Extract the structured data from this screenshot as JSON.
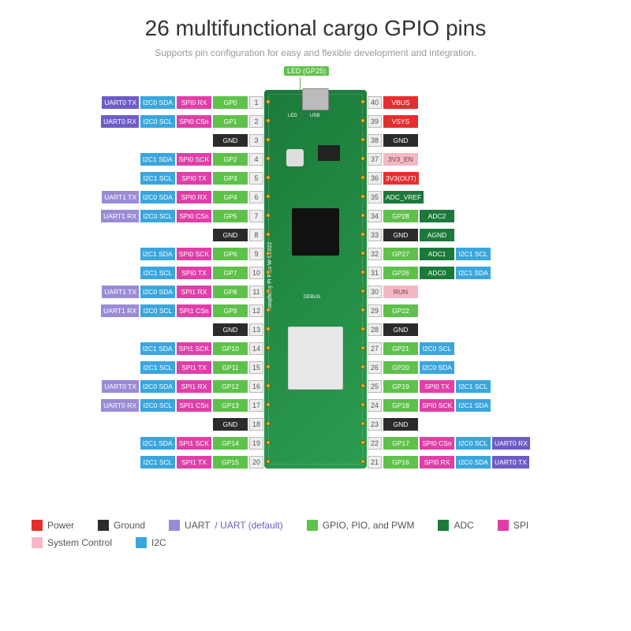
{
  "title": "26 multifunctional cargo GPIO pins",
  "subtitle": "Supports pin configuration for easy and flexible development and integration.",
  "led_label": "LED (GP25)",
  "board_label": "Raspberry Pi Pico W ©2022",
  "debug_label": "DEBUG",
  "usb_label": "USB",
  "led_txt": "LED",
  "colors": {
    "power": "#e52e2e",
    "ground": "#2b2b2b",
    "uart": "#9b8bd6",
    "uart_default": "#6f5bc7",
    "gpio": "#5ec14a",
    "adc": "#1b7a3a",
    "spi": "#e03fa8",
    "syscontrol": "#f4b8c4",
    "i2c": "#3aa6dd",
    "pinnum_bg": "#eeeeee"
  },
  "legend": [
    {
      "color": "power",
      "label": "Power"
    },
    {
      "color": "ground",
      "label": "Ground"
    },
    {
      "color": "uart",
      "label": "UART",
      "extra": "/ UART (default)",
      "extra_color": "uart_default"
    },
    {
      "color": "gpio",
      "label": "GPIO, PIO, and PWM"
    },
    {
      "color": "adc",
      "label": "ADC"
    },
    {
      "color": "spi",
      "label": "SPI"
    },
    {
      "color": "syscontrol",
      "label": "System Control"
    },
    {
      "color": "i2c",
      "label": "I2C"
    }
  ],
  "rows": [
    {
      "left": [
        {
          "c": "uart_default",
          "t": "UART0 TX"
        },
        {
          "c": "i2c",
          "t": "I2C0 SDA"
        },
        {
          "c": "spi",
          "t": "SPI0 RX"
        },
        {
          "c": "gpio",
          "t": "GP0"
        }
      ],
      "lnum": "1",
      "rnum": "40",
      "right": [
        {
          "c": "power",
          "t": "VBUS"
        }
      ]
    },
    {
      "left": [
        {
          "c": "uart_default",
          "t": "UART0 RX"
        },
        {
          "c": "i2c",
          "t": "I2C0 SCL"
        },
        {
          "c": "spi",
          "t": "SPI0 CSn"
        },
        {
          "c": "gpio",
          "t": "GP1"
        }
      ],
      "lnum": "2",
      "rnum": "39",
      "right": [
        {
          "c": "power",
          "t": "VSYS"
        }
      ]
    },
    {
      "left": [
        {
          "c": "ground",
          "t": "GND"
        }
      ],
      "lnum": "3",
      "rnum": "38",
      "right": [
        {
          "c": "ground",
          "t": "GND"
        }
      ]
    },
    {
      "left": [
        {
          "c": "i2c",
          "t": "I2C1 SDA"
        },
        {
          "c": "spi",
          "t": "SPI0 SCK"
        },
        {
          "c": "gpio",
          "t": "GP2"
        }
      ],
      "lnum": "4",
      "rnum": "37",
      "right": [
        {
          "c": "syscontrol",
          "t": "3V3_EN"
        }
      ]
    },
    {
      "left": [
        {
          "c": "i2c",
          "t": "I2C1 SCL"
        },
        {
          "c": "spi",
          "t": "SPI0 TX"
        },
        {
          "c": "gpio",
          "t": "GP3"
        }
      ],
      "lnum": "5",
      "rnum": "36",
      "right": [
        {
          "c": "power",
          "t": "3V3(OUT)"
        }
      ]
    },
    {
      "left": [
        {
          "c": "uart",
          "t": "UART1 TX"
        },
        {
          "c": "i2c",
          "t": "I2C0 SDA"
        },
        {
          "c": "spi",
          "t": "SPI0 RX"
        },
        {
          "c": "gpio",
          "t": "GP4"
        }
      ],
      "lnum": "6",
      "rnum": "35",
      "right": [
        {
          "c": "adc",
          "t": "ADC_VREF"
        }
      ]
    },
    {
      "left": [
        {
          "c": "uart",
          "t": "UART1 RX"
        },
        {
          "c": "i2c",
          "t": "I2C0 SCL"
        },
        {
          "c": "spi",
          "t": "SPI0 CSn"
        },
        {
          "c": "gpio",
          "t": "GP5"
        }
      ],
      "lnum": "7",
      "rnum": "34",
      "right": [
        {
          "c": "gpio",
          "t": "GP28"
        },
        {
          "c": "adc",
          "t": "ADC2"
        }
      ]
    },
    {
      "left": [
        {
          "c": "ground",
          "t": "GND"
        }
      ],
      "lnum": "8",
      "rnum": "33",
      "right": [
        {
          "c": "ground",
          "t": "GND"
        },
        {
          "c": "adc",
          "t": "AGND"
        }
      ]
    },
    {
      "left": [
        {
          "c": "i2c",
          "t": "I2C1 SDA"
        },
        {
          "c": "spi",
          "t": "SPI0 SCK"
        },
        {
          "c": "gpio",
          "t": "GP6"
        }
      ],
      "lnum": "9",
      "rnum": "32",
      "right": [
        {
          "c": "gpio",
          "t": "GP27"
        },
        {
          "c": "adc",
          "t": "ADC1"
        },
        {
          "c": "i2c",
          "t": "I2C1 SCL"
        }
      ]
    },
    {
      "left": [
        {
          "c": "i2c",
          "t": "I2C1 SCL"
        },
        {
          "c": "spi",
          "t": "SPI0 TX"
        },
        {
          "c": "gpio",
          "t": "GP7"
        }
      ],
      "lnum": "10",
      "rnum": "31",
      "right": [
        {
          "c": "gpio",
          "t": "GP26"
        },
        {
          "c": "adc",
          "t": "ADC0"
        },
        {
          "c": "i2c",
          "t": "I2C1 SDA"
        }
      ]
    },
    {
      "left": [
        {
          "c": "uart",
          "t": "UART1 TX"
        },
        {
          "c": "i2c",
          "t": "I2C0 SDA"
        },
        {
          "c": "spi",
          "t": "SPI1 RX"
        },
        {
          "c": "gpio",
          "t": "GP8"
        }
      ],
      "lnum": "11",
      "rnum": "30",
      "right": [
        {
          "c": "syscontrol",
          "t": "RUN"
        }
      ]
    },
    {
      "left": [
        {
          "c": "uart",
          "t": "UART1 RX"
        },
        {
          "c": "i2c",
          "t": "I2C0 SCL"
        },
        {
          "c": "spi",
          "t": "SPI1 CSn"
        },
        {
          "c": "gpio",
          "t": "GP9"
        }
      ],
      "lnum": "12",
      "rnum": "29",
      "right": [
        {
          "c": "gpio",
          "t": "GP22"
        }
      ]
    },
    {
      "left": [
        {
          "c": "ground",
          "t": "GND"
        }
      ],
      "lnum": "13",
      "rnum": "28",
      "right": [
        {
          "c": "ground",
          "t": "GND"
        }
      ]
    },
    {
      "left": [
        {
          "c": "i2c",
          "t": "I2C1 SDA"
        },
        {
          "c": "spi",
          "t": "SPI1 SCK"
        },
        {
          "c": "gpio",
          "t": "GP10"
        }
      ],
      "lnum": "14",
      "rnum": "27",
      "right": [
        {
          "c": "gpio",
          "t": "GP21"
        },
        {
          "c": "i2c",
          "t": "I2C0 SCL"
        }
      ]
    },
    {
      "left": [
        {
          "c": "i2c",
          "t": "I2C1 SCL"
        },
        {
          "c": "spi",
          "t": "SPI1 TX"
        },
        {
          "c": "gpio",
          "t": "GP11"
        }
      ],
      "lnum": "15",
      "rnum": "26",
      "right": [
        {
          "c": "gpio",
          "t": "GP20"
        },
        {
          "c": "i2c",
          "t": "I2C0 SDA"
        }
      ]
    },
    {
      "left": [
        {
          "c": "uart",
          "t": "UART0 TX"
        },
        {
          "c": "i2c",
          "t": "I2C0 SDA"
        },
        {
          "c": "spi",
          "t": "SPI1 RX"
        },
        {
          "c": "gpio",
          "t": "GP12"
        }
      ],
      "lnum": "16",
      "rnum": "25",
      "right": [
        {
          "c": "gpio",
          "t": "GP19"
        },
        {
          "c": "spi",
          "t": "SPI0 TX"
        },
        {
          "c": "i2c",
          "t": "I2C1 SCL"
        }
      ]
    },
    {
      "left": [
        {
          "c": "uart",
          "t": "UART0 RX"
        },
        {
          "c": "i2c",
          "t": "I2C0 SCL"
        },
        {
          "c": "spi",
          "t": "SPI1 CSn"
        },
        {
          "c": "gpio",
          "t": "GP13"
        }
      ],
      "lnum": "17",
      "rnum": "24",
      "right": [
        {
          "c": "gpio",
          "t": "GP18"
        },
        {
          "c": "spi",
          "t": "SPI0 SCK"
        },
        {
          "c": "i2c",
          "t": "I2C1 SDA"
        }
      ]
    },
    {
      "left": [
        {
          "c": "ground",
          "t": "GND"
        }
      ],
      "lnum": "18",
      "rnum": "23",
      "right": [
        {
          "c": "ground",
          "t": "GND"
        }
      ]
    },
    {
      "left": [
        {
          "c": "i2c",
          "t": "I2C1 SDA"
        },
        {
          "c": "spi",
          "t": "SPI1 SCK"
        },
        {
          "c": "gpio",
          "t": "GP14"
        }
      ],
      "lnum": "19",
      "rnum": "22",
      "right": [
        {
          "c": "gpio",
          "t": "GP17"
        },
        {
          "c": "spi",
          "t": "SPI0 CSn"
        },
        {
          "c": "i2c",
          "t": "I2C0 SCL"
        },
        {
          "c": "uart_default",
          "t": "UART0 RX"
        }
      ]
    },
    {
      "left": [
        {
          "c": "i2c",
          "t": "I2C1 SCL"
        },
        {
          "c": "spi",
          "t": "SPI1 TX"
        },
        {
          "c": "gpio",
          "t": "GP15"
        }
      ],
      "lnum": "20",
      "rnum": "21",
      "right": [
        {
          "c": "gpio",
          "t": "GP16"
        },
        {
          "c": "spi",
          "t": "SPI0 RX"
        },
        {
          "c": "i2c",
          "t": "I2C0 SDA"
        },
        {
          "c": "uart_default",
          "t": "UART0 TX"
        }
      ]
    }
  ]
}
